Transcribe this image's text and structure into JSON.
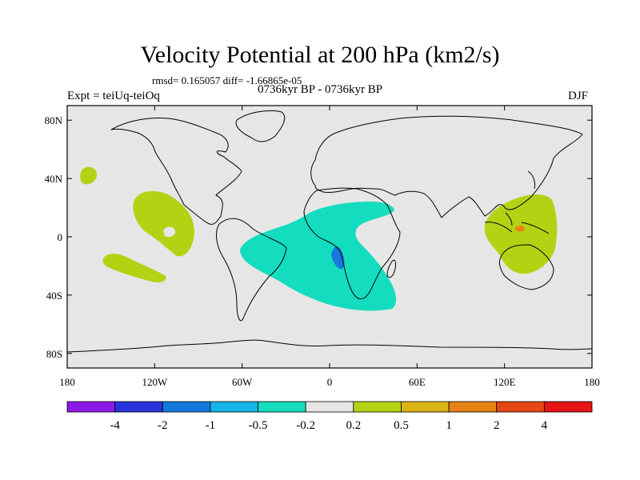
{
  "title": "Velocity Potential at 200 hPa (km2/s)",
  "stats_text": "rmsd= 0.165057  diff= -1.66865e-05",
  "experiment_text": "Expt = teiUq-teiOq",
  "period_text": "0736kyr BP - 0736kyr BP",
  "season_text": "DJF",
  "map": {
    "projection": "cylindrical equidistant",
    "lon_range": [
      -180,
      180
    ],
    "lat_range": [
      -90,
      90
    ],
    "x_ticks": [
      {
        "lon": -180,
        "label": "180"
      },
      {
        "lon": -120,
        "label": "120W"
      },
      {
        "lon": -60,
        "label": "60W"
      },
      {
        "lon": 0,
        "label": "0"
      },
      {
        "lon": 60,
        "label": "60E"
      },
      {
        "lon": 120,
        "label": "120E"
      },
      {
        "lon": 180,
        "label": "180"
      }
    ],
    "y_ticks": [
      {
        "lat": 80,
        "label": "80N"
      },
      {
        "lat": 40,
        "label": "40N"
      },
      {
        "lat": 0,
        "label": "0"
      },
      {
        "lat": -40,
        "label": "40S"
      },
      {
        "lat": -80,
        "label": "80S"
      }
    ],
    "background_color": "#e6e6e6"
  },
  "colorbar": {
    "colors": [
      "#8c19e6",
      "#2832dc",
      "#1478dc",
      "#14b4e6",
      "#14dcbe",
      "#e6e6e6",
      "#b4d214",
      "#dcb414",
      "#e68214",
      "#e64614",
      "#e61414"
    ],
    "labels": [
      "-4",
      "-2",
      "-1",
      "-0.5",
      "-0.2",
      "0.2",
      "0.5",
      "1",
      "2",
      "4"
    ]
  }
}
